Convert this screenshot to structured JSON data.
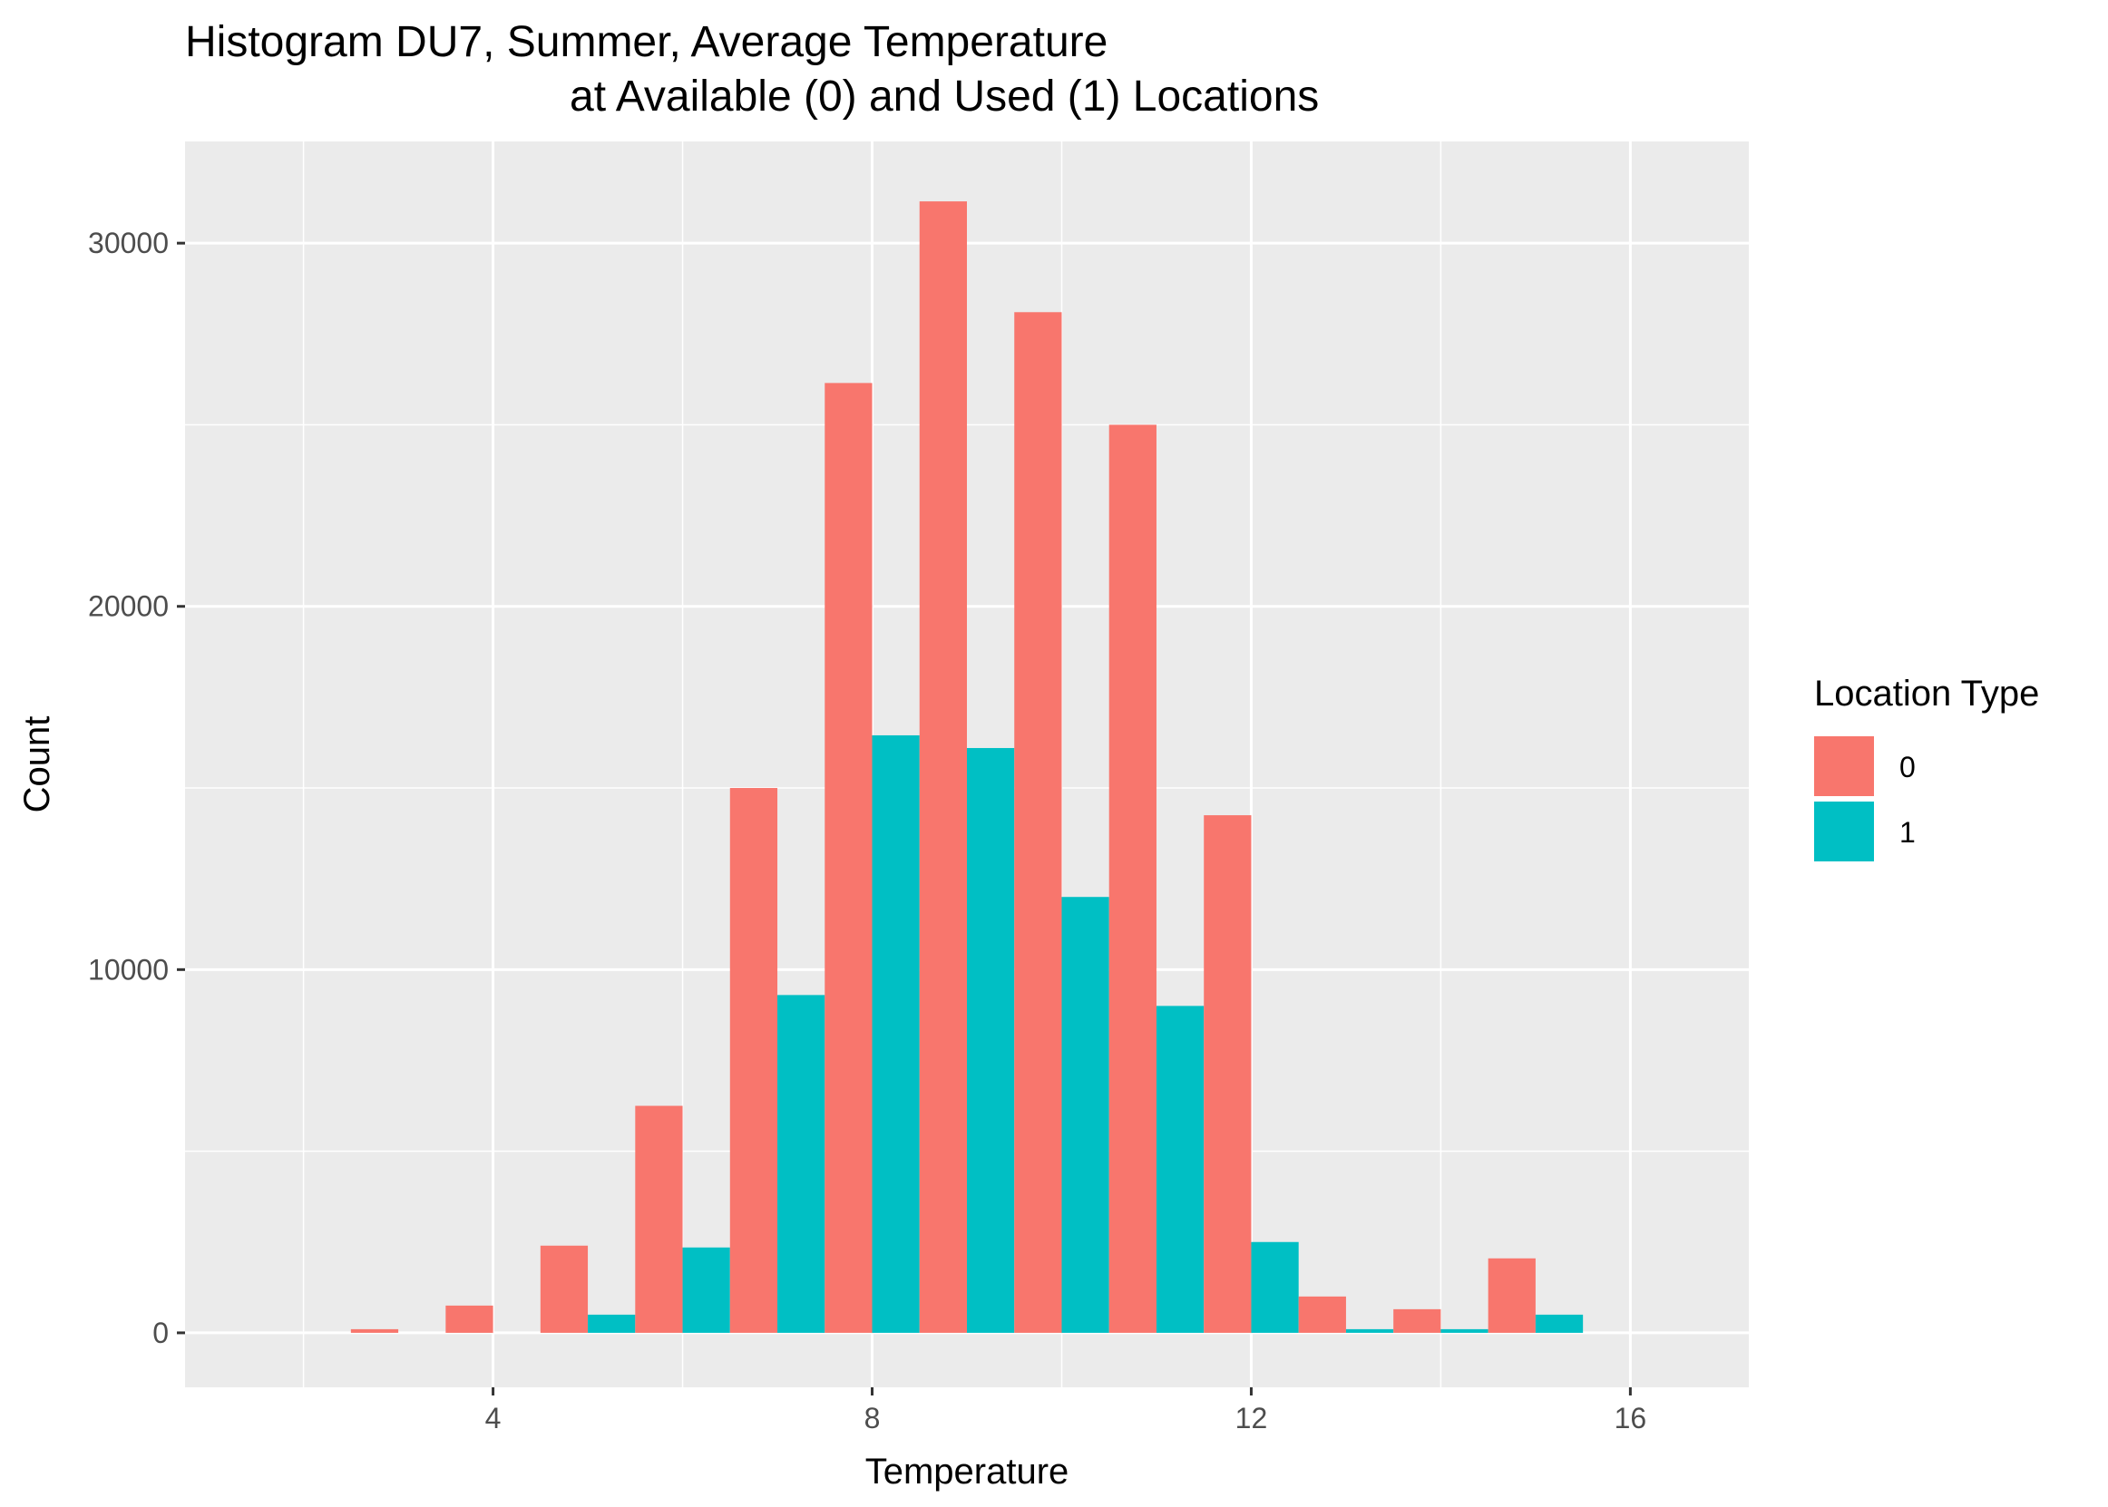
{
  "chart_data": {
    "type": "bar",
    "title_line1": "Histogram DU7, Summer, Average Temperature",
    "title_line2": "at Available (0) and Used (1) Locations",
    "xlabel": "Temperature",
    "ylabel": "Count",
    "x_ticks": [
      4,
      8,
      12,
      16
    ],
    "y_ticks": [
      0,
      10000,
      20000,
      30000
    ],
    "xlim": [
      0.75,
      17.25
    ],
    "ylim": [
      -1500,
      32800
    ],
    "bin_width": 1,
    "bin_centers": [
      3,
      4,
      5,
      6,
      7,
      8,
      9,
      10,
      11,
      12,
      13,
      14,
      15
    ],
    "series": [
      {
        "name": "0",
        "color": "#F8766D",
        "values": [
          100,
          750,
          2400,
          6250,
          15000,
          26150,
          31150,
          28100,
          25000,
          14250,
          1000,
          650,
          2050
        ]
      },
      {
        "name": "1",
        "color": "#00BFC4",
        "values": [
          0,
          0,
          500,
          2350,
          9300,
          16450,
          16100,
          12000,
          9000,
          2500,
          100,
          100,
          500
        ]
      }
    ],
    "legend": {
      "title": "Location Type",
      "position": "right"
    },
    "grid": true,
    "panel_background": "#EBEBEB",
    "grid_color": "#FFFFFF"
  }
}
